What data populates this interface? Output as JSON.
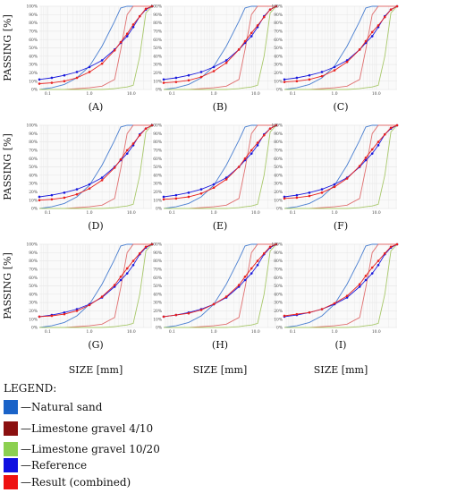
{
  "colors": {
    "natural_sand": "#4a7fd0",
    "gravel_4_10": "#e07070",
    "gravel_10_20": "#a8c86a",
    "reference": "#1a1adc",
    "result": "#e8201e",
    "grid": "#e9e9e9"
  },
  "figure": {
    "ylabel": "PASSING [%]",
    "xlabel": "SIZE [mm]"
  },
  "legend": {
    "title": "LEGEND:",
    "items": [
      {
        "label": "—Natural sand",
        "color": "#1a63c8"
      },
      {
        "label": "—Limestone gravel 4/10",
        "color": "#8b1010"
      },
      {
        "label": "—Limestone gravel 10/20",
        "color": "#8cd050"
      },
      {
        "label": "—Reference",
        "color": "#1010e0"
      },
      {
        "label": "—Result (combined)",
        "color": "#ee1111"
      }
    ]
  },
  "chart_data": {
    "type": "line",
    "xscale": "log",
    "xlim": [
      0.063,
      31.5
    ],
    "ylim": [
      0,
      100
    ],
    "grid": true,
    "yticks": [
      "0%",
      "10%",
      "20%",
      "30%",
      "40%",
      "50%",
      "60%",
      "70%",
      "80%",
      "90%",
      "100%"
    ],
    "xticks": [
      {
        "value": 0.1,
        "label": "0.1"
      },
      {
        "value": 1,
        "label": "1.0"
      },
      {
        "value": 10,
        "label": "10.0"
      }
    ],
    "sieves": [
      0.063,
      0.125,
      0.25,
      0.5,
      1,
      2,
      4,
      5.6,
      8,
      11.2,
      16,
      22.4,
      31.5
    ],
    "materials": [
      {
        "name": "Natural sand",
        "values": [
          0,
          2,
          6,
          14,
          28,
          52,
          82,
          98,
          100,
          100,
          100,
          100,
          100
        ]
      },
      {
        "name": "Limestone gravel 4/10",
        "values": [
          0,
          0,
          0,
          1,
          2,
          4,
          12,
          48,
          90,
          100,
          100,
          100,
          100
        ]
      },
      {
        "name": "Limestone gravel 10/20",
        "values": [
          0,
          0,
          0,
          0,
          0,
          0,
          1,
          2,
          3,
          5,
          40,
          92,
          100
        ]
      }
    ],
    "panels": [
      {
        "label": "(A)",
        "reference": [
          12,
          14,
          17,
          21,
          27,
          35,
          48,
          56,
          64,
          75,
          88,
          96,
          100
        ],
        "result": [
          7,
          8,
          10,
          14,
          21,
          31,
          47,
          57,
          67,
          78,
          88,
          97,
          100
        ]
      },
      {
        "label": "(B)",
        "reference": [
          12,
          14,
          17,
          21,
          27,
          35,
          48,
          56,
          64,
          75,
          88,
          96,
          100
        ],
        "result": [
          8,
          9,
          11,
          15,
          22,
          32,
          48,
          58,
          68,
          77,
          87,
          96,
          100
        ]
      },
      {
        "label": "(C)",
        "reference": [
          12,
          14,
          17,
          21,
          27,
          35,
          48,
          56,
          64,
          75,
          88,
          96,
          100
        ],
        "result": [
          9,
          10,
          12,
          16,
          23,
          33,
          48,
          58,
          69,
          77,
          87,
          96,
          100
        ]
      },
      {
        "label": "(D)",
        "reference": [
          14,
          16,
          19,
          23,
          29,
          37,
          50,
          58,
          66,
          76,
          89,
          96,
          100
        ],
        "result": [
          10,
          11,
          13,
          17,
          24,
          34,
          49,
          59,
          70,
          78,
          88,
          96,
          100
        ]
      },
      {
        "label": "(E)",
        "reference": [
          14,
          16,
          19,
          23,
          29,
          37,
          50,
          58,
          66,
          76,
          89,
          96,
          100
        ],
        "result": [
          11,
          12,
          14,
          18,
          25,
          35,
          50,
          60,
          70,
          79,
          88,
          96,
          100
        ]
      },
      {
        "label": "(F)",
        "reference": [
          14,
          16,
          19,
          23,
          29,
          37,
          50,
          58,
          66,
          76,
          89,
          96,
          100
        ],
        "result": [
          12,
          13,
          15,
          19,
          26,
          36,
          51,
          61,
          71,
          80,
          89,
          97,
          100
        ]
      },
      {
        "label": "(G)",
        "reference": [
          13,
          15,
          18,
          22,
          28,
          36,
          49,
          57,
          65,
          75,
          88,
          96,
          100
        ],
        "result": [
          13,
          14,
          16,
          20,
          27,
          37,
          51,
          61,
          71,
          80,
          89,
          97,
          100
        ]
      },
      {
        "label": "(H)",
        "reference": [
          13,
          15,
          18,
          22,
          28,
          36,
          49,
          57,
          65,
          75,
          88,
          96,
          100
        ],
        "result": [
          13,
          15,
          17,
          21,
          28,
          37,
          51,
          61,
          71,
          80,
          89,
          97,
          100
        ]
      },
      {
        "label": "(I)",
        "reference": [
          13,
          15,
          18,
          22,
          28,
          36,
          49,
          57,
          65,
          75,
          88,
          96,
          100
        ],
        "result": [
          14,
          16,
          18,
          22,
          29,
          38,
          52,
          62,
          72,
          80,
          89,
          97,
          100
        ]
      }
    ]
  }
}
